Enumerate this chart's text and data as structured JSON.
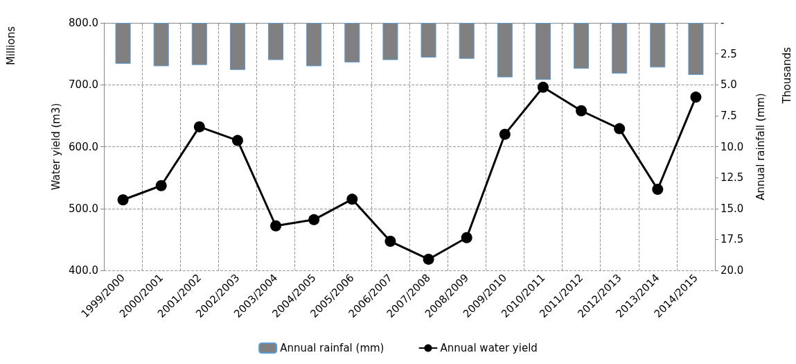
{
  "chart_data": {
    "type": "line",
    "categories": [
      "1999/2000",
      "2000/2001",
      "2001/2002",
      "2002/2003",
      "2003/2004",
      "2004/2005",
      "2005/2006",
      "2006/2007",
      "2007/2008",
      "2008/2009",
      "2009/2010",
      "2010/2011",
      "2011/2012",
      "2012/2013",
      "2013/2014",
      "2014/2015"
    ],
    "series": [
      {
        "name": "Annual rainfal (mm)",
        "type": "bar",
        "axis": "y2",
        "color": "#808080",
        "values": [
          3.3,
          3.5,
          3.4,
          3.8,
          3.0,
          3.5,
          3.2,
          3.0,
          2.8,
          2.9,
          4.4,
          4.6,
          3.7,
          4.1,
          3.6,
          4.2
        ]
      },
      {
        "name": "Annual water yield",
        "color": "#000000",
        "marker": "circle",
        "values": [
          514,
          537,
          632,
          610,
          472,
          482,
          515,
          447,
          418,
          453,
          620,
          696,
          658,
          629,
          531,
          680
        ]
      }
    ],
    "ylabel": "Water yield (m3)",
    "y2label": "Annual rainfall (mm)",
    "ylim": [
      400,
      800
    ],
    "yticks": [
      {
        "value": 400,
        "label": "400.0"
      },
      {
        "value": 500,
        "label": "500.0"
      },
      {
        "value": 600,
        "label": "600.0"
      },
      {
        "value": 700,
        "label": "700.0"
      },
      {
        "value": 800,
        "label": "800.0"
      }
    ],
    "y2lim": [
      20,
      0
    ],
    "y2ticks": [
      {
        "value": 0,
        "label": "-"
      },
      {
        "value": 2.5,
        "label": "2.5"
      },
      {
        "value": 5,
        "label": "5.0"
      },
      {
        "value": 7.5,
        "label": "7.5"
      },
      {
        "value": 10,
        "label": "10.0"
      },
      {
        "value": 12.5,
        "label": "12.5"
      },
      {
        "value": 15,
        "label": "15.0"
      },
      {
        "value": 17.5,
        "label": "17.5"
      },
      {
        "value": 20,
        "label": "20.0"
      }
    ],
    "annotations": [
      "Millions",
      "Thousands"
    ],
    "grid": true,
    "legend": "bottom",
    "line_style": "solid"
  }
}
